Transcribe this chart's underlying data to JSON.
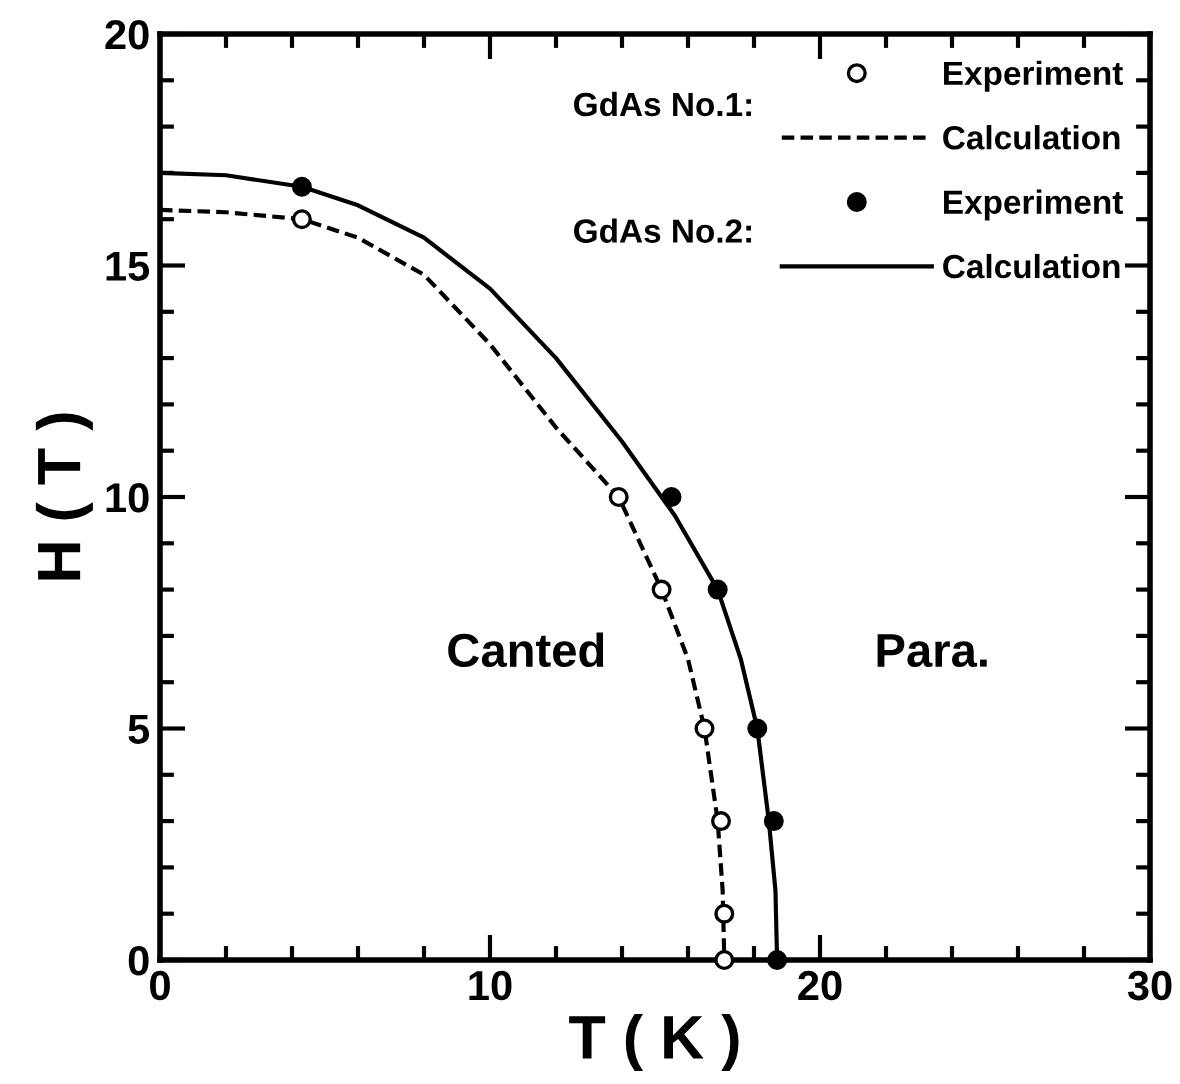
{
  "chart_data": {
    "type": "scatter",
    "xlabel": "T ( K )",
    "ylabel": "H ( T )",
    "xlim": [
      0,
      30
    ],
    "ylim": [
      0,
      20
    ],
    "xticks": [
      0,
      10,
      20,
      30
    ],
    "yticks": [
      0,
      5,
      10,
      15,
      20
    ],
    "grid": false,
    "legend": "top right",
    "series": [
      {
        "name": "Experiment",
        "marker": "circle",
        "color": "#ffffff",
        "x": [
          4.3,
          13.9,
          15.2,
          16.5,
          17.0,
          17.1,
          17.1
        ],
        "values": [
          16.0,
          10,
          8,
          5,
          3,
          1,
          0
        ]
      },
      {
        "name": "Calculation",
        "type": "line",
        "line_style": "dashed",
        "color": "#000000",
        "x": [
          0,
          2,
          4.3,
          6,
          8,
          10,
          12,
          13.9,
          15.2,
          16.0,
          16.5,
          16.9,
          17.05,
          17.1
        ],
        "values": [
          16.2,
          16.15,
          16.0,
          15.6,
          14.8,
          13.3,
          11.5,
          10,
          8,
          6.5,
          5,
          3,
          1.5,
          0
        ]
      },
      {
        "name": "Experiment",
        "marker": "circle",
        "color": "#000000",
        "x": [
          4.3,
          15.5,
          16.9,
          18.1,
          18.6,
          18.7
        ],
        "values": [
          16.7,
          10,
          8,
          5,
          3,
          0
        ]
      },
      {
        "name": "Calculation",
        "type": "line",
        "line_style": "solid",
        "color": "#000000",
        "x": [
          0,
          2,
          4.3,
          6,
          8,
          10,
          12,
          14,
          15.6,
          16.9,
          17.6,
          18.1,
          18.45,
          18.65,
          18.7
        ],
        "values": [
          17.0,
          16.95,
          16.7,
          16.3,
          15.6,
          14.5,
          13.0,
          11.2,
          9.6,
          8,
          6.5,
          5,
          3,
          1.5,
          0
        ]
      }
    ],
    "annotations": [
      "GdAs No.1:",
      "GdAs No.2:",
      "Canted",
      "Para."
    ]
  }
}
